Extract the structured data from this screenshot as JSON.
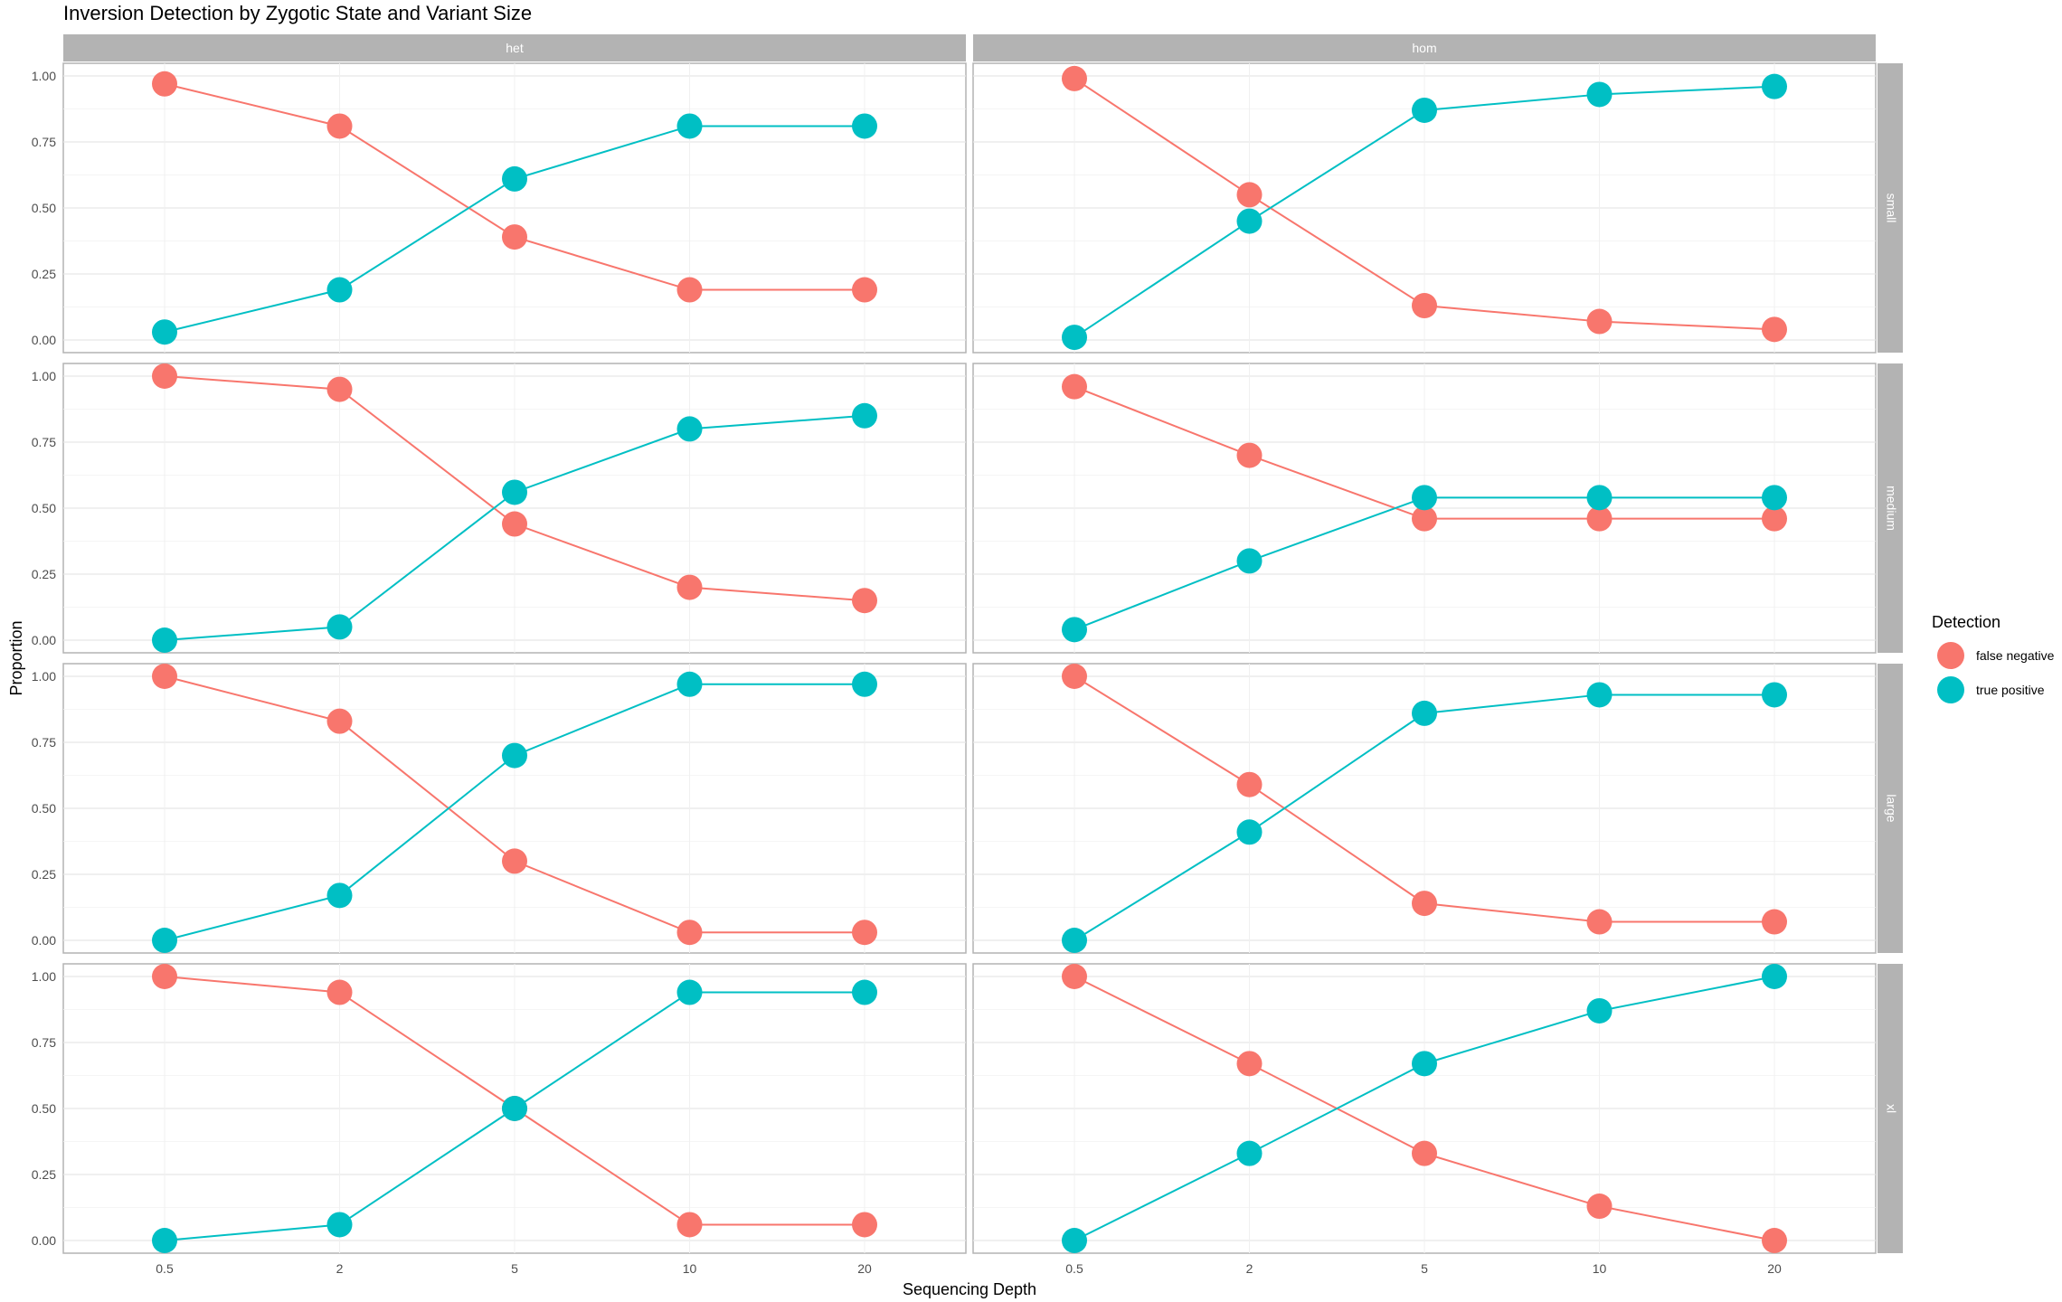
{
  "chart_data": {
    "type": "line",
    "title": "Inversion Detection by Zygotic State and Variant Size",
    "xlabel": "Sequencing Depth",
    "ylabel": "Proportion",
    "x": [
      "0.5",
      "2",
      "5",
      "10",
      "20"
    ],
    "yticks": [
      "0.00",
      "0.25",
      "0.50",
      "0.75",
      "1.00"
    ],
    "ylim": [
      0,
      1
    ],
    "grid": true,
    "legend": {
      "title": "Detection",
      "position": "right",
      "entries": [
        {
          "name": "false negative",
          "color": "#F8766D"
        },
        {
          "name": "true positive",
          "color": "#00BFC4"
        }
      ]
    },
    "facet_cols": [
      "het",
      "hom"
    ],
    "facet_rows": [
      "small",
      "medium",
      "large",
      "xl"
    ],
    "panels": [
      {
        "row": "small",
        "col": "het",
        "series": [
          {
            "name": "false negative",
            "values": [
              0.97,
              0.81,
              0.39,
              0.19,
              0.19
            ]
          },
          {
            "name": "true positive",
            "values": [
              0.03,
              0.19,
              0.61,
              0.81,
              0.81
            ]
          }
        ]
      },
      {
        "row": "small",
        "col": "hom",
        "series": [
          {
            "name": "false negative",
            "values": [
              0.99,
              0.55,
              0.13,
              0.07,
              0.04
            ]
          },
          {
            "name": "true positive",
            "values": [
              0.01,
              0.45,
              0.87,
              0.93,
              0.96
            ]
          }
        ]
      },
      {
        "row": "medium",
        "col": "het",
        "series": [
          {
            "name": "false negative",
            "values": [
              1.0,
              0.95,
              0.44,
              0.2,
              0.15
            ]
          },
          {
            "name": "true positive",
            "values": [
              0.0,
              0.05,
              0.56,
              0.8,
              0.85
            ]
          }
        ]
      },
      {
        "row": "medium",
        "col": "hom",
        "series": [
          {
            "name": "false negative",
            "values": [
              0.96,
              0.7,
              0.46,
              0.46,
              0.46
            ]
          },
          {
            "name": "true positive",
            "values": [
              0.04,
              0.3,
              0.54,
              0.54,
              0.54
            ]
          }
        ]
      },
      {
        "row": "large",
        "col": "het",
        "series": [
          {
            "name": "false negative",
            "values": [
              1.0,
              0.83,
              0.3,
              0.03,
              0.03
            ]
          },
          {
            "name": "true positive",
            "values": [
              0.0,
              0.17,
              0.7,
              0.97,
              0.97
            ]
          }
        ]
      },
      {
        "row": "large",
        "col": "hom",
        "series": [
          {
            "name": "false negative",
            "values": [
              1.0,
              0.59,
              0.14,
              0.07,
              0.07
            ]
          },
          {
            "name": "true positive",
            "values": [
              0.0,
              0.41,
              0.86,
              0.93,
              0.93
            ]
          }
        ]
      },
      {
        "row": "xl",
        "col": "het",
        "series": [
          {
            "name": "false negative",
            "values": [
              1.0,
              0.94,
              0.5,
              0.06,
              0.06
            ]
          },
          {
            "name": "true positive",
            "values": [
              0.0,
              0.06,
              0.5,
              0.94,
              0.94
            ]
          }
        ]
      },
      {
        "row": "xl",
        "col": "hom",
        "series": [
          {
            "name": "false negative",
            "values": [
              1.0,
              0.67,
              0.33,
              0.13,
              0.0
            ]
          },
          {
            "name": "true positive",
            "values": [
              0.0,
              0.33,
              0.67,
              0.87,
              1.0
            ]
          }
        ]
      }
    ]
  }
}
